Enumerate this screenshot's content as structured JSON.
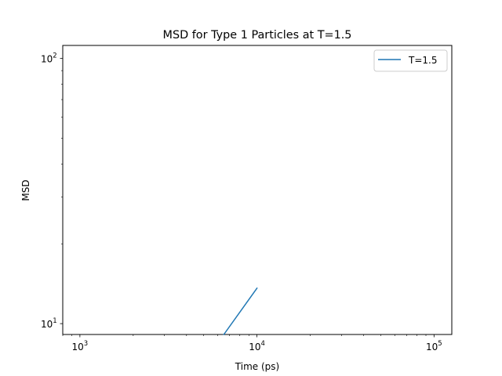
{
  "chart_data": {
    "type": "line",
    "title": "MSD for Type 1 Particles at T=1.5",
    "xlabel": "Time (ps)",
    "ylabel": "MSD",
    "xscale": "log",
    "yscale": "log",
    "xlim": [
      800,
      126000
    ],
    "ylim": [
      9.1,
      112
    ],
    "grid": false,
    "legend_position": "top-right",
    "x_major_ticks": [
      {
        "base": "10",
        "exp": "3",
        "value": 1000
      },
      {
        "base": "10",
        "exp": "4",
        "value": 10000
      },
      {
        "base": "10",
        "exp": "5",
        "value": 100000
      }
    ],
    "y_major_ticks": [
      {
        "base": "10",
        "exp": "1",
        "value": 10
      },
      {
        "base": "10",
        "exp": "2",
        "value": 100
      }
    ],
    "series": [
      {
        "name": "T=1.5",
        "color": "#1f77b4",
        "x": [
          6500,
          10000
        ],
        "y": [
          9.1,
          13.6
        ]
      }
    ]
  }
}
